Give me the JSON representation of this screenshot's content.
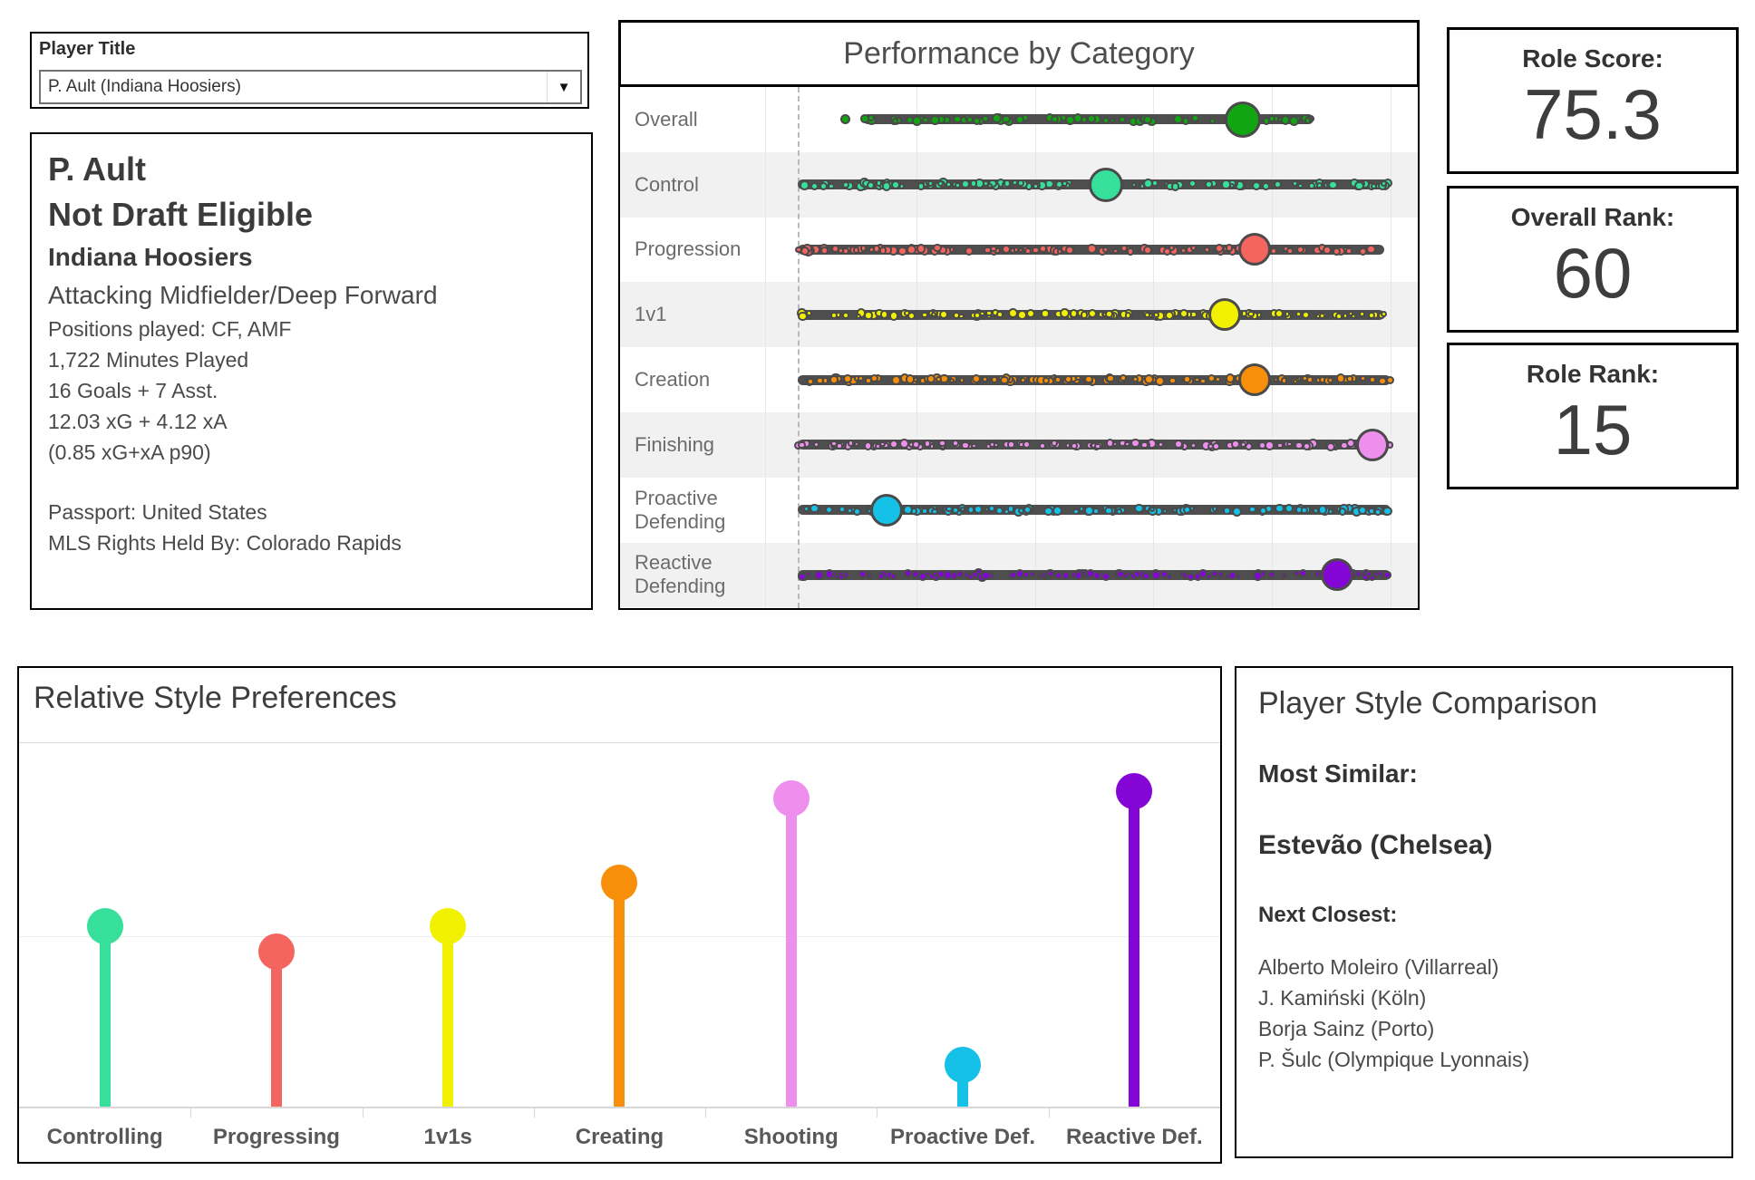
{
  "player_selector": {
    "label": "Player Title",
    "value": "P. Ault (Indiana Hoosiers)",
    "caret": "▼"
  },
  "player_info": {
    "name": "P. Ault",
    "draft_status": "Not Draft Eligible",
    "team": "Indiana Hoosiers",
    "role": "Attacking Midfielder/Deep Forward",
    "positions": "Positions played: CF, AMF",
    "minutes": "1,722 Minutes Played",
    "goals_assists": "16 Goals + 7 Asst.",
    "xg_xa": "12.03 xG + 4.12 xA",
    "xg_xa_p90": "(0.85 xG+xA p90)",
    "passport": "Passport: United States",
    "mls_rights": "MLS Rights Held By: Colorado Rapids"
  },
  "stats": [
    {
      "label": "Role Score:",
      "value": "75.3"
    },
    {
      "label": "Overall Rank:",
      "value": "60"
    },
    {
      "label": "Role Rank:",
      "value": "15"
    }
  ],
  "comparison": {
    "title": "Player Style Comparison",
    "most_similar_label": "Most Similar:",
    "most_similar": "Estevão (Chelsea)",
    "next_label": "Next Closest:",
    "next_closest": [
      "Alberto Moleiro (Villarreal)",
      "J. Kamiński (Köln)",
      "Borja Sainz (Porto)",
      "P. Šulc (Olympique Lyonnais)"
    ]
  },
  "chart_data": [
    {
      "type": "strip",
      "title": "Performance by Category",
      "description": "Dot-strip distribution per category; large outlined dot marks the selected player's percentile position; dashed reference line at left edge of scale.",
      "categories": [
        "Overall",
        "Control",
        "Progression",
        "1v1",
        "Creation",
        "Finishing",
        "Proactive Defending",
        "Reactive Defending"
      ],
      "series": [
        {
          "name": "P. Ault position (% of scale)",
          "values": [
            75,
            52,
            77,
            72,
            77,
            97,
            15,
            91
          ]
        }
      ],
      "colors": [
        "#12A512",
        "#36E09A",
        "#F4655F",
        "#F0F000",
        "#F78F0A",
        "#EE8FEE",
        "#15C1E6",
        "#8406D6"
      ],
      "strip_ranges": [
        [
          11,
          87
        ],
        [
          0,
          100
        ],
        [
          0,
          99
        ],
        [
          0,
          99
        ],
        [
          0,
          100
        ],
        [
          0,
          100
        ],
        [
          0,
          100
        ],
        [
          0,
          100
        ]
      ],
      "outlier_dot": {
        "row": 0,
        "x": 8
      },
      "dot_counts": [
        90,
        135,
        135,
        135,
        135,
        135,
        135,
        135
      ],
      "xlim": [
        0,
        100
      ],
      "grid": "faint vertical gridlines every 20%",
      "row_band_color": "#f1f1f2",
      "bar_color": "#4e4e4e",
      "highlight_sizes": [
        40,
        38,
        36,
        36,
        36,
        36,
        36,
        36
      ]
    },
    {
      "type": "lollipop",
      "title": "Relative Style Preferences",
      "categories": [
        "Controlling",
        "Progressing",
        "1v1s",
        "Creating",
        "Shooting",
        "Proactive Def.",
        "Reactive Def."
      ],
      "values": [
        50,
        43,
        50,
        62,
        85,
        12,
        87
      ],
      "colors": [
        "#36E09A",
        "#F4655F",
        "#F0F000",
        "#F78F0A",
        "#EE8FEE",
        "#15C1E6",
        "#8406D6"
      ],
      "ylim": [
        0,
        100
      ],
      "reference_gridline": 47,
      "xlabel": "",
      "ylabel": "",
      "legend": "none"
    }
  ]
}
